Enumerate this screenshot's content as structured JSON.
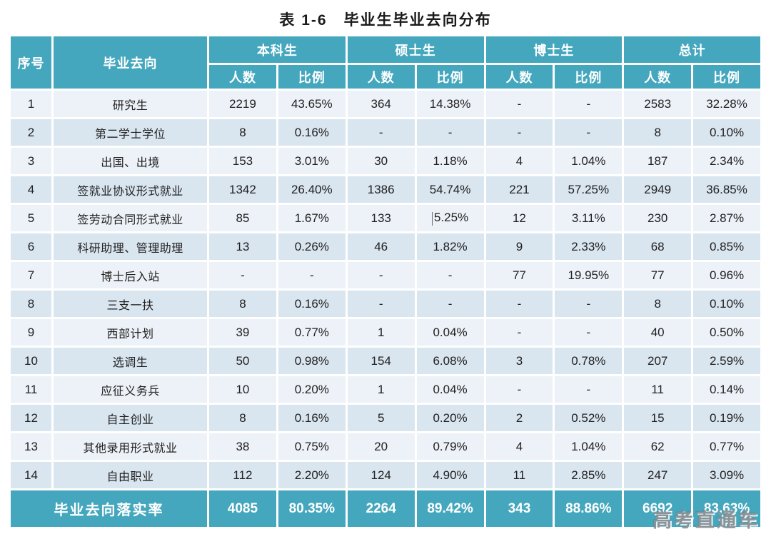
{
  "title": "表 1-6　毕业生毕业去向分布",
  "colors": {
    "header_teal": "#44a7be",
    "row_light": "#edf2f8",
    "row_dark": "#d9e5ef",
    "gap_white": "#ffffff",
    "text_dark": "#212121",
    "watermark_gray": "#8d9297"
  },
  "table": {
    "corner_headers": {
      "no": "序号",
      "destination": "毕业去向"
    },
    "groups": [
      {
        "label": "本科生"
      },
      {
        "label": "硕士生"
      },
      {
        "label": "博士生"
      },
      {
        "label": "总计"
      }
    ],
    "subheaders": {
      "count": "人数",
      "ratio": "比例"
    },
    "rows": [
      {
        "no": "1",
        "name": "研究生",
        "cells": [
          "2219",
          "43.65%",
          "364",
          "14.38%",
          "-",
          "-",
          "2583",
          "32.28%"
        ]
      },
      {
        "no": "2",
        "name": "第二学士学位",
        "cells": [
          "8",
          "0.16%",
          "-",
          "-",
          "-",
          "-",
          "8",
          "0.10%"
        ]
      },
      {
        "no": "3",
        "name": "出国、出境",
        "cells": [
          "153",
          "3.01%",
          "30",
          "1.18%",
          "4",
          "1.04%",
          "187",
          "2.34%"
        ]
      },
      {
        "no": "4",
        "name": "签就业协议形式就业",
        "cells": [
          "1342",
          "26.40%",
          "1386",
          "54.74%",
          "221",
          "57.25%",
          "2949",
          "36.85%"
        ]
      },
      {
        "no": "5",
        "name": "签劳动合同形式就业",
        "cells": [
          "85",
          "1.67%",
          "133",
          "5.25%",
          "12",
          "3.11%",
          "230",
          "2.87%"
        ]
      },
      {
        "no": "6",
        "name": "科研助理、管理助理",
        "cells": [
          "13",
          "0.26%",
          "46",
          "1.82%",
          "9",
          "2.33%",
          "68",
          "0.85%"
        ]
      },
      {
        "no": "7",
        "name": "博士后入站",
        "cells": [
          "-",
          "-",
          "-",
          "-",
          "77",
          "19.95%",
          "77",
          "0.96%"
        ]
      },
      {
        "no": "8",
        "name": "三支一扶",
        "cells": [
          "8",
          "0.16%",
          "-",
          "-",
          "-",
          "-",
          "8",
          "0.10%"
        ]
      },
      {
        "no": "9",
        "name": "西部计划",
        "cells": [
          "39",
          "0.77%",
          "1",
          "0.04%",
          "-",
          "-",
          "40",
          "0.50%"
        ]
      },
      {
        "no": "10",
        "name": "选调生",
        "cells": [
          "50",
          "0.98%",
          "154",
          "6.08%",
          "3",
          "0.78%",
          "207",
          "2.59%"
        ]
      },
      {
        "no": "11",
        "name": "应征义务兵",
        "cells": [
          "10",
          "0.20%",
          "1",
          "0.04%",
          "-",
          "-",
          "11",
          "0.14%"
        ]
      },
      {
        "no": "12",
        "name": "自主创业",
        "cells": [
          "8",
          "0.16%",
          "5",
          "0.20%",
          "2",
          "0.52%",
          "15",
          "0.19%"
        ]
      },
      {
        "no": "13",
        "name": "其他录用形式就业",
        "cells": [
          "38",
          "0.75%",
          "20",
          "0.79%",
          "4",
          "1.04%",
          "62",
          "0.77%"
        ]
      },
      {
        "no": "14",
        "name": "自由职业",
        "cells": [
          "112",
          "2.20%",
          "124",
          "4.90%",
          "11",
          "2.85%",
          "247",
          "3.09%"
        ]
      }
    ],
    "footer": {
      "label": "毕业去向落实率",
      "cells": [
        "4085",
        "80.35%",
        "2264",
        "89.42%",
        "343",
        "88.86%",
        "6692",
        "83.63%"
      ]
    }
  },
  "artifacts": {
    "text_cursor": {
      "row_index": 4,
      "cell_index": 3
    }
  },
  "watermark": "高考直通车"
}
